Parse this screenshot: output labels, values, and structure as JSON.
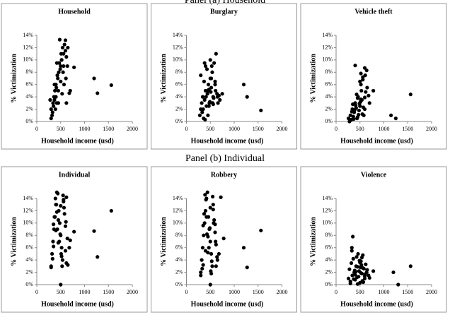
{
  "headers": [
    "Panel (a) Household",
    "Panel (b) Individual"
  ],
  "chart_data": [
    {
      "type": "scatter",
      "title": "Household",
      "x_label": "Household income (usd)",
      "y_label": "% Victimization",
      "color": "#000000",
      "xlim": [
        0,
        2000
      ],
      "xticks": [
        0,
        500,
        1000,
        1500,
        2000
      ],
      "ylim": [
        0,
        14
      ],
      "yticks": [
        {
          "value": 0,
          "label": "0%"
        },
        {
          "value": 2,
          "label": "2%"
        },
        {
          "value": 4,
          "label": "4%"
        },
        {
          "value": 6,
          "label": "6%"
        },
        {
          "value": 8,
          "label": "8%"
        },
        {
          "value": 10,
          "label": "10%"
        },
        {
          "value": 12,
          "label": "12%"
        },
        {
          "value": 14,
          "label": "14%"
        }
      ],
      "x": [
        300,
        320,
        340,
        360,
        380,
        400,
        420,
        440,
        460,
        480,
        500,
        520,
        540,
        560,
        580,
        600,
        620,
        640,
        300,
        350,
        400,
        450,
        500,
        550,
        600,
        650,
        330,
        370,
        410,
        430,
        470,
        510,
        530,
        570,
        610,
        390,
        450,
        490,
        520,
        560,
        680,
        700,
        780,
        1200,
        1270,
        1560,
        370,
        420,
        620,
        280
      ],
      "values": [
        2,
        1,
        3,
        4,
        5,
        6,
        3,
        7,
        8,
        13.3,
        9,
        10,
        12,
        11,
        12.5,
        13.2,
        10.5,
        9,
        0.5,
        2.5,
        4,
        5,
        6.5,
        8,
        11.5,
        12,
        1.5,
        3.5,
        5.5,
        7.5,
        9.5,
        11,
        4.5,
        6,
        7,
        2,
        3,
        8.5,
        10,
        9,
        4.6,
        5,
        8.8,
        7,
        4.6,
        5.9,
        6,
        9.5,
        3,
        3.5
      ]
    },
    {
      "type": "scatter",
      "title": "Burglary",
      "x_label": "Household income (usd)",
      "y_label": "% Victimization",
      "color": "#000000",
      "xlim": [
        0,
        2000
      ],
      "xticks": [
        0,
        500,
        1000,
        1500,
        2000
      ],
      "ylim": [
        0,
        14
      ],
      "yticks": [
        {
          "value": 0,
          "label": "0%"
        },
        {
          "value": 2,
          "label": "2%"
        },
        {
          "value": 4,
          "label": "4%"
        },
        {
          "value": 6,
          "label": "6%"
        },
        {
          "value": 8,
          "label": "8%"
        },
        {
          "value": 10,
          "label": "10%"
        },
        {
          "value": 12,
          "label": "12%"
        },
        {
          "value": 14,
          "label": "14%"
        }
      ],
      "x": [
        280,
        300,
        320,
        340,
        360,
        380,
        400,
        420,
        440,
        460,
        480,
        500,
        520,
        540,
        560,
        580,
        600,
        620,
        640,
        660,
        300,
        350,
        400,
        450,
        500,
        550,
        600,
        650,
        700,
        330,
        370,
        410,
        430,
        470,
        510,
        530,
        570,
        610,
        390,
        450,
        490,
        520,
        560,
        680,
        750,
        1200,
        1270,
        1560,
        380,
        470
      ],
      "values": [
        1,
        2,
        3,
        4,
        0.5,
        3.5,
        5,
        2.5,
        4.5,
        6,
        3,
        7,
        5.5,
        8,
        4,
        9.5,
        6.5,
        11,
        4.5,
        3,
        7.5,
        2,
        9,
        5,
        10,
        3,
        6,
        4,
        3.5,
        1.5,
        6.5,
        4,
        8.5,
        2.5,
        4.8,
        9,
        3.8,
        5,
        0.3,
        1,
        3.2,
        7,
        2.8,
        4.2,
        4.5,
        6,
        4,
        1.8,
        9.5,
        5.2
      ]
    },
    {
      "type": "scatter",
      "title": "Vehicle theft",
      "x_label": "Household income (usd)",
      "y_label": "% Victimization",
      "color": "#000000",
      "xlim": [
        0,
        2000
      ],
      "xticks": [
        0,
        500,
        1000,
        1500,
        2000
      ],
      "ylim": [
        0,
        14
      ],
      "yticks": [
        {
          "value": 0,
          "label": "0%"
        },
        {
          "value": 2,
          "label": "2%"
        },
        {
          "value": 4,
          "label": "4%"
        },
        {
          "value": 6,
          "label": "6%"
        },
        {
          "value": 8,
          "label": "8%"
        },
        {
          "value": 10,
          "label": "10%"
        },
        {
          "value": 12,
          "label": "12%"
        },
        {
          "value": 14,
          "label": "14%"
        }
      ],
      "x": [
        260,
        280,
        300,
        320,
        340,
        360,
        380,
        400,
        420,
        440,
        460,
        480,
        500,
        520,
        540,
        560,
        580,
        600,
        620,
        640,
        300,
        350,
        400,
        450,
        500,
        550,
        600,
        650,
        700,
        330,
        370,
        410,
        430,
        470,
        510,
        530,
        570,
        610,
        390,
        450,
        490,
        520,
        560,
        680,
        780,
        1150,
        1250,
        1560,
        520,
        600
      ],
      "values": [
        0.5,
        0,
        1,
        0.3,
        2,
        0.8,
        1.5,
        3,
        2.2,
        0.5,
        4,
        1.8,
        2.5,
        6,
        3.5,
        7.2,
        1,
        8.7,
        4.8,
        8.3,
        0.2,
        2.8,
        9.1,
        3.8,
        6.5,
        1.2,
        2,
        5.5,
        3,
        1.6,
        0.4,
        2.6,
        4.4,
        1.1,
        3.2,
        5,
        2.3,
        7.5,
        1.9,
        0.7,
        2.9,
        3.6,
        6.8,
        4.2,
        5,
        1,
        0.5,
        4.4,
        7.8,
        3.9
      ]
    },
    {
      "type": "scatter",
      "title": "Individual",
      "x_label": "Household income (usd)",
      "y_label": "% Victimization",
      "color": "#000000",
      "xlim": [
        0,
        2000
      ],
      "xticks": [
        0,
        500,
        1000,
        1500,
        2000
      ],
      "ylim": [
        0,
        14
      ],
      "yticks": [
        {
          "value": 0,
          "label": "0%"
        },
        {
          "value": 2,
          "label": "2%"
        },
        {
          "value": 4,
          "label": "4%"
        },
        {
          "value": 6,
          "label": "6%"
        },
        {
          "value": 8,
          "label": "8%"
        },
        {
          "value": 10,
          "label": "10%"
        },
        {
          "value": 12,
          "label": "12%"
        },
        {
          "value": 14,
          "label": "14%"
        }
      ],
      "x": [
        300,
        320,
        340,
        360,
        380,
        400,
        420,
        440,
        460,
        480,
        500,
        520,
        540,
        560,
        580,
        600,
        620,
        640,
        300,
        350,
        400,
        450,
        500,
        550,
        600,
        650,
        330,
        370,
        410,
        430,
        470,
        510,
        530,
        570,
        610,
        390,
        450,
        490,
        520,
        560,
        680,
        700,
        780,
        1200,
        1270,
        1560,
        500,
        420,
        620,
        350
      ],
      "values": [
        3,
        5,
        7,
        9,
        11,
        13,
        15,
        14.8,
        12,
        10,
        8,
        6,
        4,
        13.5,
        11.5,
        9.5,
        14.2,
        7.5,
        2.8,
        6.2,
        8.8,
        10.5,
        12.8,
        14.5,
        5.5,
        3.2,
        4.2,
        11,
        13,
        9,
        7,
        5,
        3,
        12.5,
        10.2,
        14,
        6.8,
        8.2,
        4.6,
        13.8,
        6,
        7.2,
        8.6,
        8.7,
        4.5,
        12,
        0,
        11.8,
        3.5,
        9.8
      ]
    },
    {
      "type": "scatter",
      "title": "Robbery",
      "x_label": "Household income (usd)",
      "y_label": "% Victimization",
      "color": "#000000",
      "xlim": [
        0,
        2000
      ],
      "xticks": [
        0,
        500,
        1000,
        1500,
        2000
      ],
      "ylim": [
        0,
        14
      ],
      "yticks": [
        {
          "value": 0,
          "label": "0%"
        },
        {
          "value": 2,
          "label": "2%"
        },
        {
          "value": 4,
          "label": "4%"
        },
        {
          "value": 6,
          "label": "6%"
        },
        {
          "value": 8,
          "label": "8%"
        },
        {
          "value": 10,
          "label": "10%"
        },
        {
          "value": 12,
          "label": "12%"
        },
        {
          "value": 14,
          "label": "14%"
        }
      ],
      "x": [
        300,
        320,
        340,
        360,
        380,
        400,
        420,
        440,
        460,
        480,
        500,
        520,
        540,
        560,
        580,
        600,
        620,
        640,
        300,
        350,
        400,
        450,
        500,
        550,
        600,
        650,
        330,
        370,
        410,
        430,
        470,
        510,
        530,
        570,
        610,
        390,
        450,
        490,
        520,
        560,
        680,
        720,
        780,
        1200,
        1270,
        1560,
        500,
        420,
        620,
        350
      ],
      "values": [
        2,
        4,
        6,
        8,
        10,
        12,
        14,
        15,
        11,
        9,
        7,
        5,
        3,
        13,
        10.5,
        8.5,
        6.5,
        4.5,
        1.5,
        3.2,
        5.5,
        7.8,
        12.5,
        14.3,
        9.8,
        4,
        2.6,
        11.5,
        13.8,
        8.2,
        6,
        2.2,
        3.8,
        10,
        7,
        14.6,
        5.2,
        9.2,
        1.8,
        12.2,
        5,
        14.2,
        7.5,
        6,
        2.8,
        8.8,
        0,
        11,
        3,
        9.6
      ]
    },
    {
      "type": "scatter",
      "title": "Violence",
      "x_label": "Household income (usd)",
      "y_label": "% Victimization",
      "color": "#000000",
      "xlim": [
        0,
        2000
      ],
      "xticks": [
        0,
        500,
        1000,
        1500,
        2000
      ],
      "ylim": [
        0,
        14
      ],
      "yticks": [
        {
          "value": 0,
          "label": "0%"
        },
        {
          "value": 2,
          "label": "2%"
        },
        {
          "value": 4,
          "label": "4%"
        },
        {
          "value": 6,
          "label": "6%"
        },
        {
          "value": 8,
          "label": "8%"
        },
        {
          "value": 10,
          "label": "10%"
        },
        {
          "value": 12,
          "label": "12%"
        },
        {
          "value": 14,
          "label": "14%"
        }
      ],
      "x": [
        260,
        280,
        300,
        320,
        340,
        360,
        380,
        400,
        420,
        440,
        460,
        480,
        500,
        520,
        540,
        560,
        580,
        600,
        620,
        640,
        300,
        350,
        400,
        450,
        500,
        550,
        600,
        650,
        700,
        330,
        370,
        410,
        430,
        470,
        510,
        530,
        570,
        610,
        390,
        450,
        490,
        520,
        560,
        680,
        780,
        1200,
        1300,
        1560,
        330,
        540
      ],
      "values": [
        1,
        2.5,
        0.5,
        3.5,
        1.5,
        4.2,
        2,
        0.8,
        3,
        1.2,
        5,
        2.2,
        0.3,
        3.8,
        1.8,
        4.8,
        2.6,
        1,
        3.3,
        2,
        0.2,
        7.8,
        1.6,
        2.9,
        3.6,
        0.6,
        1.4,
        2.4,
        1.1,
        5.5,
        0.9,
        2.1,
        4.5,
        1.3,
        2.8,
        3.2,
        0.4,
        1.7,
        2.3,
        0.1,
        3.9,
        1.9,
        2.7,
        1.5,
        2.2,
        2,
        0,
        3,
        6,
        4.4
      ]
    }
  ]
}
